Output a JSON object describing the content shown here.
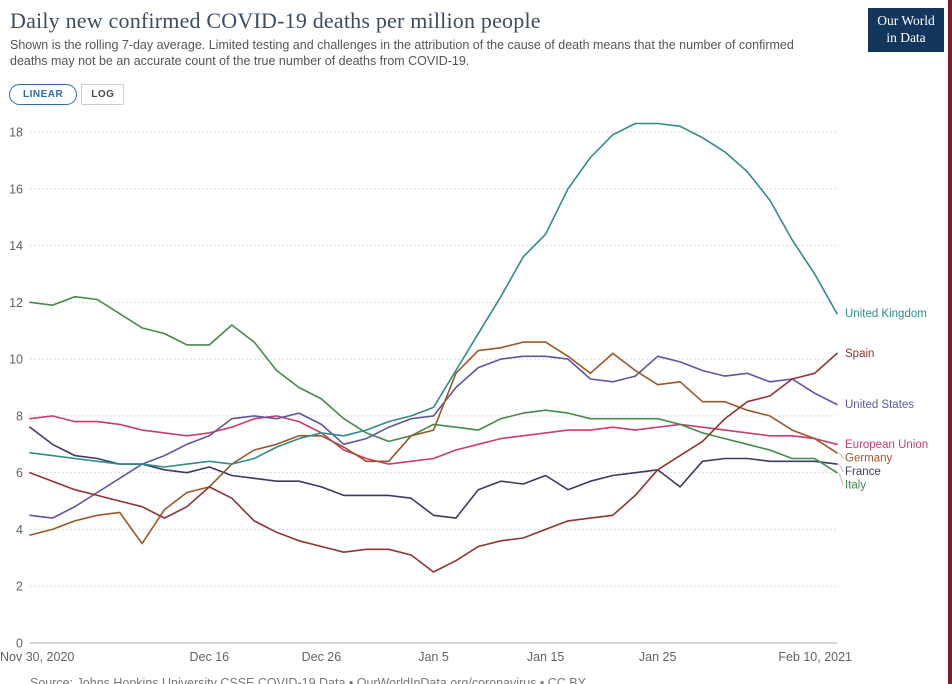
{
  "header": {
    "title": "Daily new confirmed COVID-19 deaths per million people",
    "subtitle": "Shown is the rolling 7-day average. Limited testing and challenges in the attribution of the cause of death means that the number of confirmed deaths may not be an accurate count of the true number of deaths from COVID-19.",
    "logo_line1": "Our World",
    "logo_line2": "in Data"
  },
  "toolbar": {
    "linear_label": "LINEAR",
    "log_label": "LOG"
  },
  "colors": {
    "accent_blue": "#2c6cab",
    "logo_bg": "#13365c",
    "edge_red": "#7d1d24",
    "grid": "#dddddd",
    "axis_text": "#636363"
  },
  "chart_data": {
    "type": "line",
    "title": "Daily new confirmed COVID-19 deaths per million people",
    "xlabel": "",
    "ylabel": "",
    "grid": "horizontal-dashed",
    "legend_position": "right-end-labels",
    "y_axis": {
      "min": 0,
      "max": 18,
      "step": 2
    },
    "x_range": [
      "Nov 30, 2020",
      "Feb 10, 2021"
    ],
    "x_ticks": [
      {
        "day": 0,
        "label": "Nov 30, 2020"
      },
      {
        "day": 16,
        "label": "Dec 16"
      },
      {
        "day": 26,
        "label": "Dec 26"
      },
      {
        "day": 36,
        "label": "Jan 5"
      },
      {
        "day": 46,
        "label": "Jan 15"
      },
      {
        "day": 56,
        "label": "Jan 25"
      },
      {
        "day": 72,
        "label": "Feb 10, 2021"
      }
    ],
    "days": [
      0,
      2,
      4,
      6,
      8,
      10,
      12,
      14,
      16,
      18,
      20,
      22,
      24,
      26,
      28,
      30,
      32,
      34,
      36,
      38,
      40,
      42,
      44,
      46,
      48,
      50,
      52,
      54,
      56,
      58,
      60,
      62,
      64,
      66,
      68,
      70,
      72
    ],
    "series": [
      {
        "name": "European Union",
        "color": "#c73e6f",
        "values": [
          7.9,
          8.0,
          7.8,
          7.8,
          7.7,
          7.5,
          7.4,
          7.3,
          7.4,
          7.6,
          7.9,
          8.0,
          7.8,
          7.4,
          6.8,
          6.5,
          6.3,
          6.4,
          6.5,
          6.8,
          7.0,
          7.2,
          7.3,
          7.4,
          7.5,
          7.5,
          7.6,
          7.5,
          7.6,
          7.7,
          7.6,
          7.5,
          7.4,
          7.3,
          7.3,
          7.2,
          7.0
        ]
      },
      {
        "name": "France",
        "color": "#3a3c63",
        "values": [
          7.6,
          7.0,
          6.6,
          6.5,
          6.3,
          6.3,
          6.1,
          6.0,
          6.2,
          5.9,
          5.8,
          5.7,
          5.7,
          5.5,
          5.2,
          5.2,
          5.2,
          5.1,
          4.5,
          4.4,
          5.4,
          5.7,
          5.6,
          5.9,
          5.4,
          5.7,
          5.9,
          6.0,
          6.1,
          5.5,
          6.4,
          6.5,
          6.5,
          6.4,
          6.4,
          6.4,
          6.3
        ]
      },
      {
        "name": "Italy",
        "color": "#458a4c",
        "values": [
          12.0,
          11.9,
          12.2,
          12.1,
          11.6,
          11.1,
          10.9,
          10.5,
          10.5,
          11.2,
          10.6,
          9.6,
          9.0,
          8.6,
          7.9,
          7.4,
          7.1,
          7.3,
          7.7,
          7.6,
          7.5,
          7.9,
          8.1,
          8.2,
          8.1,
          7.9,
          7.9,
          7.9,
          7.9,
          7.7,
          7.4,
          7.2,
          7.0,
          6.8,
          6.5,
          6.5,
          6.0
        ]
      },
      {
        "name": "United States",
        "color": "#5b57a2",
        "values": [
          4.5,
          4.4,
          4.8,
          5.3,
          5.8,
          6.3,
          6.6,
          7.0,
          7.3,
          7.9,
          8.0,
          7.9,
          8.1,
          7.7,
          7.0,
          7.2,
          7.6,
          7.9,
          8.0,
          9.0,
          9.7,
          10.0,
          10.1,
          10.1,
          10.0,
          9.3,
          9.2,
          9.4,
          10.1,
          9.9,
          9.6,
          9.4,
          9.5,
          9.2,
          9.3,
          8.8,
          8.4
        ]
      },
      {
        "name": "Germany",
        "color": "#9c5727",
        "values": [
          3.8,
          4.0,
          4.3,
          4.5,
          4.6,
          3.5,
          4.7,
          5.3,
          5.5,
          6.3,
          6.8,
          7.0,
          7.3,
          7.3,
          6.9,
          6.4,
          6.4,
          7.3,
          7.5,
          9.5,
          10.3,
          10.4,
          10.6,
          10.6,
          10.1,
          9.5,
          10.2,
          9.6,
          9.1,
          9.2,
          8.5,
          8.5,
          8.2,
          8.0,
          7.5,
          7.2,
          6.7
        ]
      },
      {
        "name": "Spain",
        "color": "#8f3433",
        "values": [
          6.0,
          5.7,
          5.4,
          5.2,
          5.0,
          4.8,
          4.4,
          4.8,
          5.5,
          5.1,
          4.3,
          3.9,
          3.6,
          3.4,
          3.2,
          3.3,
          3.3,
          3.1,
          2.5,
          2.9,
          3.4,
          3.6,
          3.7,
          4.0,
          4.3,
          4.4,
          4.5,
          5.2,
          6.1,
          6.6,
          7.1,
          7.9,
          8.5,
          8.7,
          9.3,
          9.5,
          10.2
        ]
      },
      {
        "name": "United Kingdom",
        "color": "#2f8c8a",
        "values": [
          6.7,
          6.6,
          6.5,
          6.4,
          6.3,
          6.3,
          6.2,
          6.3,
          6.4,
          6.3,
          6.5,
          6.9,
          7.2,
          7.4,
          7.3,
          7.5,
          7.8,
          8.0,
          8.3,
          9.6,
          10.9,
          12.2,
          13.6,
          14.4,
          16.0,
          17.1,
          17.9,
          18.3,
          18.3,
          18.2,
          17.8,
          17.3,
          16.6,
          15.6,
          14.2,
          13.0,
          11.6
        ]
      }
    ]
  },
  "footer": {
    "source": "Source: Johns Hopkins University CSSE COVID-19 Data • OurWorldInData.org/coronavirus • CC BY"
  }
}
